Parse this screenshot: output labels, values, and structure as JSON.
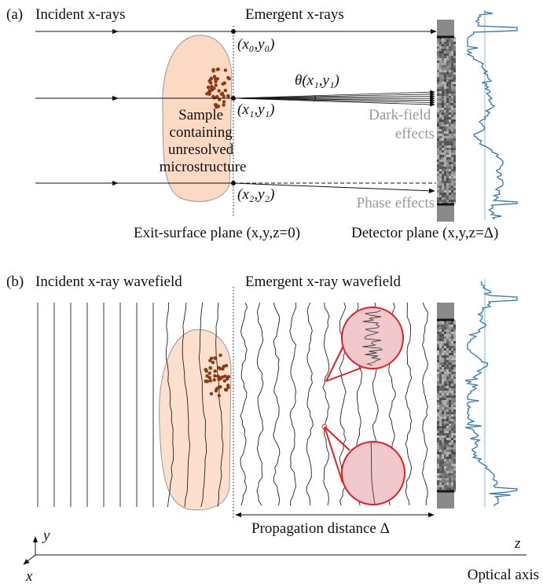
{
  "panel_a": {
    "label": "(a)",
    "incident": "Incident x-rays",
    "emergent": "Emergent x-rays",
    "point0": "(x₀,y₀)",
    "point1": "(x₁,y₁)",
    "point2": "(x₂,y₂)",
    "angle": "θ(x₁,y₁)",
    "sample": [
      "Sample",
      "containing",
      "unresolved",
      "microstructure"
    ],
    "dark_field": [
      "Dark-field",
      "effects"
    ],
    "phase": "Phase effects",
    "exit_plane": "Exit-surface plane (x,y,z=0)",
    "detector_plane": "Detector plane (x,y,z=Δ)"
  },
  "panel_b": {
    "label": "(b)",
    "incident": "Incident x-ray wavefield",
    "emergent": "Emergent x-ray wavefield",
    "propagation": "Propagation distance Δ"
  },
  "axes": {
    "y": "y",
    "z": "z",
    "x": "x",
    "optical_axis": "Optical axis"
  }
}
